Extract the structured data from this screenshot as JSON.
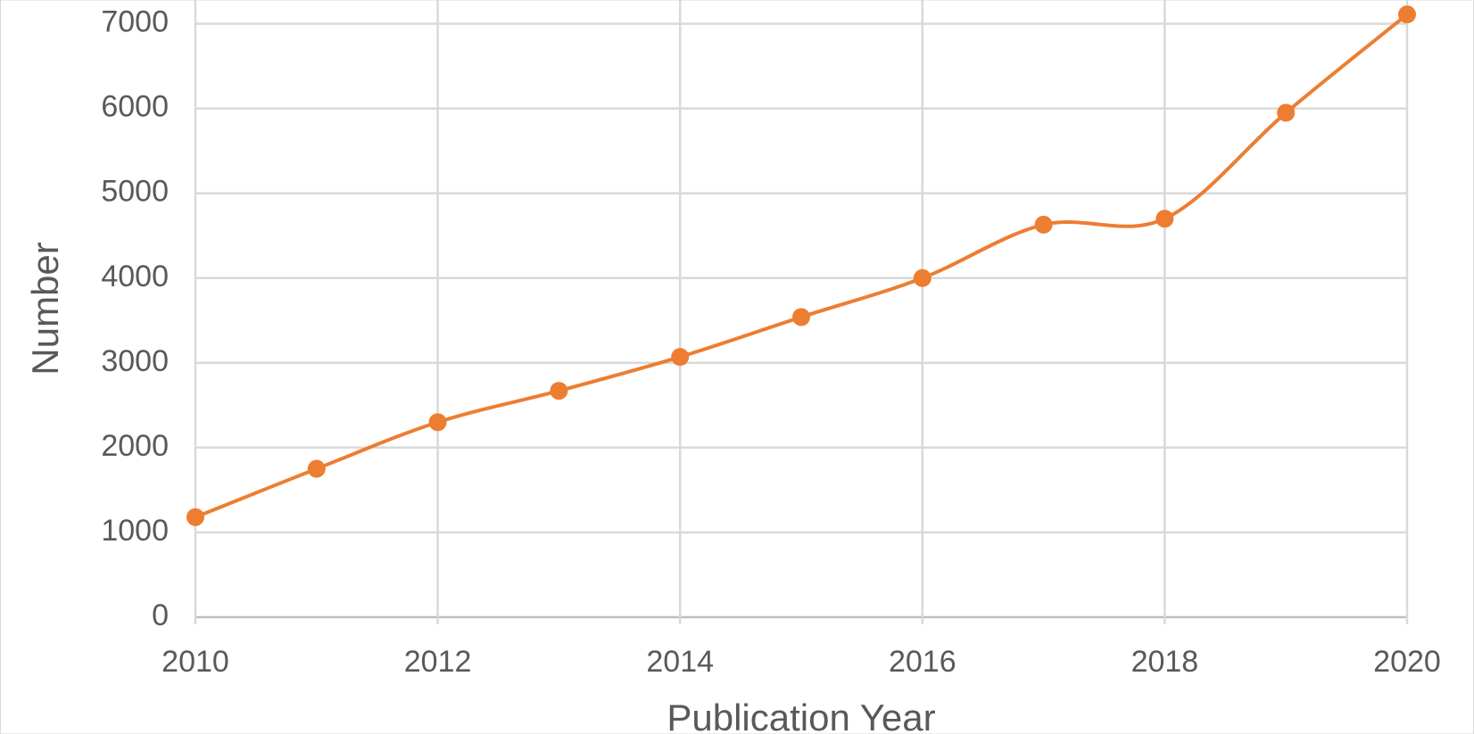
{
  "chart_data": {
    "type": "line",
    "x_label": "Publication Year",
    "y_label": "Number",
    "x": [
      2010,
      2011,
      2012,
      2013,
      2014,
      2015,
      2016,
      2017,
      2018,
      2019,
      2020
    ],
    "series": [
      {
        "color": "#ed7d31",
        "values": [
          1180,
          1750,
          2300,
          2670,
          3070,
          3540,
          4000,
          4630,
          4700,
          5950,
          7110
        ]
      }
    ],
    "xlim": [
      2010,
      2020
    ],
    "xticks": [
      2010,
      2012,
      2014,
      2016,
      2018,
      2020
    ],
    "ylim": [
      0,
      7280
    ],
    "yticks": [
      0,
      1000,
      2000,
      3000,
      4000,
      5000,
      6000,
      7000
    ],
    "grid": true,
    "smooth": true,
    "markers": true
  }
}
